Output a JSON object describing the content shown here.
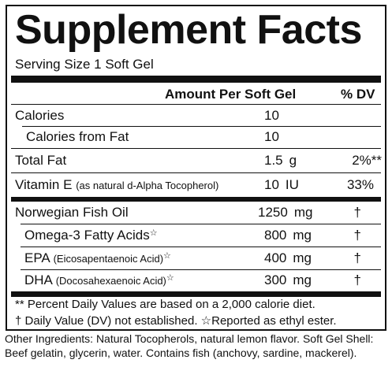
{
  "header": {
    "title": "Supplement Facts",
    "serving": "Serving Size 1 Soft Gel"
  },
  "columns": [
    "Amount Per Soft Gel",
    "% DV"
  ],
  "rows": [
    {
      "name": "Calories",
      "amount": "10"
    },
    {
      "name": "Calories from Fat",
      "amount": "10"
    },
    {
      "name": "Total Fat",
      "amount": "1.5",
      "unit": "g",
      "dv": "2%**"
    },
    {
      "name": "Vitamin E",
      "note": "(as natural d-Alpha Tocopherol)",
      "amount": "10",
      "unit": "IU",
      "dv": "33%"
    },
    {
      "name": "Norwegian Fish Oil",
      "amount": "1250",
      "unit": "mg",
      "dv": "†"
    },
    {
      "name": "Omega-3 Fatty Acids",
      "mark": "☆",
      "amount": "800",
      "unit": "mg",
      "dv": "†"
    },
    {
      "name": "EPA",
      "note": "(Eicosapentaenoic Acid)",
      "mark": "☆",
      "amount": "400",
      "unit": "mg",
      "dv": "†"
    },
    {
      "name": "DHA",
      "note": "(Docosahexaenoic Acid)",
      "mark": "☆",
      "amount": "300",
      "unit": "mg",
      "dv": "†"
    }
  ],
  "footnotes": [
    "** Percent Daily Values are based on a 2,000 calorie diet.",
    "† Daily Value (DV) not established.  ☆Reported as ethyl ester."
  ],
  "other_ingredients": "Other Ingredients: Natural Tocopherols, natural lemon flavor. Soft Gel Shell: Beef gelatin, glycerin, water. Contains fish (anchovy, sardine, mackerel)."
}
